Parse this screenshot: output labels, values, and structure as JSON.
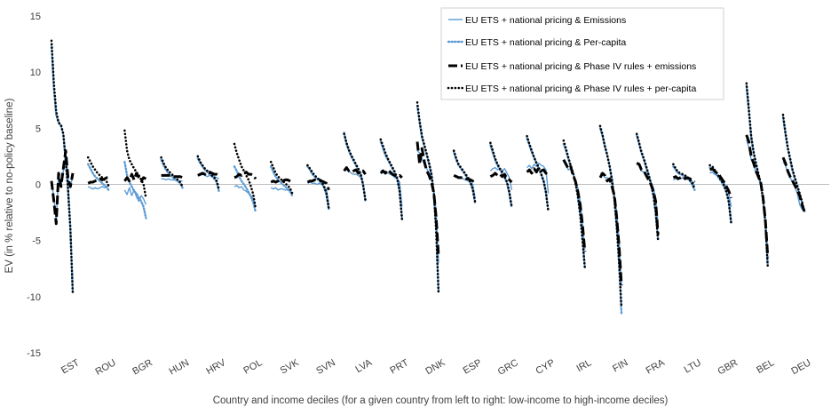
{
  "chart_data": {
    "type": "line",
    "title": "",
    "xlabel": "Country and income deciles (for a given country from left to right: low-income to high-income deciles)",
    "ylabel": "EV (in % relative to no-policy baseline)",
    "ylim": [
      -15,
      15
    ],
    "yticks": [
      15,
      10,
      5,
      0,
      -5,
      -10,
      -15
    ],
    "grid": false,
    "legend_position": "top-right",
    "colors": {
      "emissions": "#5b9bd5",
      "percapita": "#5b9bd5",
      "phase_emissions": "#000000",
      "phase_percapita": "#000000"
    },
    "categories": [
      "EST",
      "ROU",
      "BGR",
      "HUN",
      "HRV",
      "POL",
      "SVK",
      "SVN",
      "LVA",
      "PRT",
      "DNK",
      "ESP",
      "GRC",
      "CYP",
      "IRL",
      "FIN",
      "FRA",
      "LTU",
      "GBR",
      "BEL",
      "DEU"
    ],
    "series": [
      {
        "key": "emissions",
        "name": "EU ETS + national pricing & Emissions",
        "values": [
          [
            0.3,
            -1.2,
            -3.2,
            1.0,
            -0.2,
            1.2,
            2.8,
            0.5,
            -0.3,
            0.9
          ],
          [
            -0.2,
            -0.3,
            -0.4,
            -0.3,
            -0.4,
            -0.3,
            -0.2,
            -0.3,
            -0.2,
            -0.1
          ],
          [
            -0.5,
            -0.9,
            -0.3,
            -1.0,
            -0.5,
            -1.1,
            -1.5,
            -1.0,
            -1.3,
            -1.8
          ],
          [
            0.5,
            0.5,
            0.4,
            0.5,
            0.4,
            0.4,
            0.4,
            0.3,
            0.3,
            0.3
          ],
          [
            0.8,
            0.8,
            0.9,
            0.8,
            0.7,
            0.8,
            0.8,
            0.7,
            0.6,
            0.5
          ],
          [
            -0.2,
            -0.1,
            -0.3,
            -0.2,
            -0.5,
            -0.6,
            -0.8,
            -1.0,
            -1.3,
            -2.0
          ],
          [
            -0.3,
            -0.4,
            -0.3,
            -0.5,
            -0.4,
            -0.4,
            -0.5,
            -0.5,
            -0.6,
            -0.8
          ],
          [
            0.1,
            0.2,
            0.1,
            0.1,
            0.0,
            0.1,
            0.0,
            -0.2,
            -0.5,
            -1.8
          ],
          [
            1.2,
            1.4,
            1.2,
            1.0,
            0.9,
            0.9,
            0.8,
            0.6,
            0.1,
            -1.2
          ],
          [
            1.2,
            1.3,
            1.0,
            1.0,
            0.9,
            0.8,
            0.6,
            0.5,
            0.2,
            -2.0
          ],
          [
            3.0,
            2.8,
            2.3,
            1.8,
            1.4,
            1.0,
            0.5,
            -0.5,
            -2.5,
            -7.0
          ],
          [
            0.8,
            0.8,
            0.7,
            0.6,
            0.5,
            0.4,
            0.3,
            0.2,
            0.0,
            -1.2
          ],
          [
            1.2,
            1.4,
            1.5,
            1.3,
            1.4,
            1.2,
            1.4,
            1.0,
            0.6,
            -0.5
          ],
          [
            1.5,
            1.7,
            1.4,
            1.8,
            1.6,
            1.9,
            1.7,
            1.6,
            1.3,
            -0.8
          ],
          [
            2.0,
            1.8,
            1.3,
            1.4,
            1.0,
            0.4,
            -0.3,
            -1.5,
            -3.5,
            -5.8
          ],
          [
            1.0,
            0.9,
            0.6,
            0.6,
            0.4,
            0.0,
            -0.8,
            -2.5,
            -5.0,
            -9.0
          ],
          [
            1.8,
            1.7,
            1.2,
            1.1,
            0.8,
            0.5,
            0.2,
            -0.3,
            -1.2,
            -3.5
          ],
          [
            0.4,
            0.5,
            0.6,
            0.5,
            0.6,
            0.5,
            0.5,
            0.4,
            0.3,
            -0.2
          ],
          [
            1.0,
            1.1,
            0.9,
            0.8,
            0.6,
            0.4,
            0.1,
            -0.3,
            -0.8,
            -2.0
          ],
          [
            4.0,
            3.3,
            2.2,
            1.8,
            1.0,
            0.6,
            0.0,
            -1.2,
            -3.0,
            -6.0
          ],
          [
            2.0,
            1.7,
            1.0,
            0.6,
            0.2,
            -0.2,
            -0.8,
            -1.8,
            -2.2,
            -2.4
          ]
        ]
      },
      {
        "key": "percapita",
        "name": "EU ETS + national pricing & Per-capita",
        "values": [
          [
            12.5,
            8.5,
            6.2,
            5.5,
            5.2,
            4.5,
            2.0,
            -0.5,
            -4.0,
            -9.6
          ],
          [
            1.8,
            1.4,
            1.0,
            0.7,
            0.5,
            0.3,
            0.1,
            -0.1,
            -0.3,
            -0.6
          ],
          [
            2.0,
            0.8,
            0.2,
            -0.2,
            -0.6,
            -0.8,
            -1.2,
            -1.5,
            -2.0,
            -3.0
          ],
          [
            2.2,
            1.7,
            1.3,
            1.0,
            0.8,
            0.6,
            0.4,
            0.3,
            0.1,
            -0.3
          ],
          [
            2.3,
            1.9,
            1.6,
            1.3,
            1.1,
            0.9,
            0.7,
            0.5,
            0.2,
            -0.7
          ],
          [
            1.6,
            1.2,
            0.7,
            0.3,
            0.0,
            -0.3,
            -0.7,
            -1.1,
            -1.6,
            -2.5
          ],
          [
            1.6,
            1.1,
            0.7,
            0.4,
            0.2,
            0.0,
            -0.2,
            -0.4,
            -0.6,
            -1.0
          ],
          [
            1.6,
            1.3,
            0.9,
            0.7,
            0.5,
            0.3,
            0.1,
            -0.3,
            -0.9,
            -2.2
          ],
          [
            4.6,
            3.6,
            3.0,
            2.5,
            2.1,
            1.7,
            1.3,
            0.9,
            0.0,
            -1.5
          ],
          [
            3.8,
            3.2,
            2.6,
            2.2,
            1.8,
            1.4,
            1.0,
            0.5,
            -0.6,
            -3.0
          ],
          [
            7.0,
            5.5,
            4.2,
            3.4,
            2.6,
            1.8,
            0.8,
            -0.8,
            -4.0,
            -9.6
          ],
          [
            2.9,
            2.2,
            1.7,
            1.4,
            1.1,
            0.8,
            0.5,
            0.1,
            -0.4,
            -1.7
          ],
          [
            3.5,
            2.8,
            2.2,
            1.7,
            1.3,
            1.0,
            0.6,
            0.1,
            -0.8,
            -2.1
          ],
          [
            4.1,
            3.5,
            2.9,
            2.4,
            1.9,
            1.5,
            0.9,
            0.3,
            -0.7,
            -2.4
          ],
          [
            3.6,
            3.0,
            2.3,
            1.6,
            1.0,
            0.2,
            -1.0,
            -2.6,
            -4.8,
            -7.4
          ],
          [
            5.0,
            4.3,
            3.4,
            2.6,
            1.6,
            0.4,
            -1.3,
            -3.8,
            -7.0,
            -11.5
          ],
          [
            4.4,
            3.6,
            2.8,
            2.2,
            1.5,
            0.8,
            0.0,
            -1.0,
            -2.5,
            -4.9
          ],
          [
            1.6,
            1.3,
            1.0,
            0.9,
            0.8,
            0.7,
            0.5,
            0.3,
            0.0,
            -0.5
          ],
          [
            1.5,
            1.4,
            1.1,
            0.8,
            0.5,
            0.2,
            -0.2,
            -0.7,
            -1.5,
            -3.4
          ],
          [
            8.8,
            6.5,
            4.2,
            2.8,
            1.8,
            0.9,
            0.0,
            -1.4,
            -3.5,
            -7.3
          ],
          [
            6.0,
            4.5,
            3.2,
            2.2,
            1.2,
            0.5,
            -0.2,
            -0.9,
            -1.6,
            -2.4
          ]
        ]
      },
      {
        "key": "phase_emissions",
        "name": "EU ETS + national pricing & Phase IV rules + emissions",
        "values": [
          [
            0.3,
            -1.5,
            -3.5,
            1.0,
            -0.2,
            1.4,
            3.0,
            0.5,
            -0.2,
            1.0
          ],
          [
            0.1,
            0.2,
            0.2,
            0.3,
            0.4,
            0.5,
            0.4,
            0.5,
            0.6,
            0.6
          ],
          [
            0.3,
            0.6,
            0.3,
            0.9,
            0.4,
            1.0,
            0.6,
            0.3,
            0.6,
            0.5
          ],
          [
            0.8,
            0.8,
            0.8,
            0.8,
            0.8,
            0.7,
            0.7,
            0.7,
            0.7,
            0.6
          ],
          [
            0.8,
            0.9,
            1.0,
            0.9,
            1.0,
            1.1,
            1.0,
            0.9,
            0.9,
            0.8
          ],
          [
            0.6,
            0.7,
            0.9,
            0.8,
            1.0,
            1.1,
            0.9,
            0.9,
            0.8,
            0.5
          ],
          [
            0.2,
            0.3,
            0.2,
            0.3,
            0.4,
            0.3,
            0.4,
            0.4,
            0.3,
            0.2
          ],
          [
            0.2,
            0.3,
            0.3,
            0.4,
            0.3,
            0.4,
            0.3,
            0.2,
            0.1,
            -0.5
          ],
          [
            1.2,
            1.5,
            1.2,
            1.1,
            1.2,
            1.3,
            1.0,
            1.1,
            1.2,
            0.9
          ],
          [
            1.0,
            1.2,
            1.0,
            1.3,
            1.1,
            0.9,
            0.8,
            0.7,
            0.8,
            0.6
          ],
          [
            3.8,
            1.8,
            3.2,
            2.0,
            1.2,
            0.8,
            0.2,
            -0.8,
            -3.0,
            -6.5
          ],
          [
            0.8,
            0.7,
            0.6,
            0.6,
            0.6,
            0.5,
            0.5,
            0.4,
            0.3,
            0.1
          ],
          [
            0.7,
            0.8,
            1.0,
            0.8,
            0.9,
            0.7,
            0.9,
            0.5,
            0.4,
            0.2
          ],
          [
            1.1,
            1.3,
            1.0,
            1.4,
            1.1,
            1.5,
            1.2,
            1.3,
            1.0,
            0.8
          ],
          [
            2.2,
            1.8,
            1.4,
            1.6,
            0.8,
            0.3,
            -0.6,
            -1.8,
            -3.6,
            -6.0
          ],
          [
            0.6,
            1.0,
            0.8,
            0.3,
            0.5,
            -0.2,
            -1.0,
            -3.0,
            -5.5,
            -9.0
          ],
          [
            1.9,
            1.8,
            1.3,
            1.2,
            0.8,
            0.4,
            0.0,
            -0.6,
            -1.5,
            -4.5
          ],
          [
            0.6,
            0.7,
            0.5,
            0.6,
            0.7,
            0.5,
            0.6,
            0.5,
            0.4,
            0.2
          ],
          [
            1.3,
            1.4,
            1.2,
            1.0,
            0.8,
            0.5,
            0.2,
            -0.2,
            -0.6,
            -1.2
          ],
          [
            4.4,
            3.8,
            2.5,
            1.9,
            1.2,
            0.7,
            0.2,
            -1.2,
            -3.2,
            -6.5
          ],
          [
            2.4,
            1.9,
            1.2,
            0.7,
            0.3,
            -0.1,
            -0.5,
            -1.0,
            -1.8,
            -2.4
          ]
        ]
      },
      {
        "key": "phase_percapita",
        "name": "EU ETS + national pricing & Phase IV rules + per-capita",
        "values": [
          [
            12.8,
            9.0,
            6.5,
            5.5,
            5.3,
            4.5,
            2.2,
            -0.5,
            -4.0,
            -9.8
          ],
          [
            2.4,
            2.0,
            1.6,
            1.3,
            1.0,
            0.8,
            0.6,
            0.4,
            0.2,
            -0.3
          ],
          [
            4.8,
            3.0,
            2.2,
            1.8,
            1.4,
            1.1,
            0.8,
            0.4,
            0.0,
            -1.2
          ],
          [
            2.4,
            1.9,
            1.5,
            1.2,
            1.0,
            0.8,
            0.6,
            0.4,
            0.2,
            -0.2
          ],
          [
            2.5,
            2.0,
            1.7,
            1.4,
            1.2,
            1.0,
            0.8,
            0.6,
            0.3,
            -0.5
          ],
          [
            3.6,
            2.8,
            2.2,
            1.6,
            1.2,
            0.8,
            0.4,
            -0.2,
            -0.9,
            -2.2
          ],
          [
            2.0,
            1.5,
            1.0,
            0.7,
            0.5,
            0.3,
            0.1,
            -0.1,
            -0.3,
            -0.8
          ],
          [
            1.7,
            1.4,
            1.1,
            0.8,
            0.6,
            0.4,
            0.2,
            -0.2,
            -0.8,
            -2.2
          ],
          [
            4.5,
            3.7,
            3.1,
            2.6,
            2.2,
            1.8,
            1.4,
            0.9,
            0.0,
            -1.4
          ],
          [
            4.0,
            3.4,
            2.8,
            2.3,
            1.9,
            1.5,
            1.1,
            0.5,
            -0.6,
            -3.1
          ],
          [
            7.3,
            5.6,
            4.3,
            3.5,
            2.7,
            1.9,
            0.9,
            -0.8,
            -4.2,
            -9.8
          ],
          [
            3.0,
            2.3,
            1.8,
            1.5,
            1.2,
            0.9,
            0.6,
            0.2,
            -0.4,
            -1.6
          ],
          [
            3.7,
            3.0,
            2.3,
            1.8,
            1.4,
            1.1,
            0.7,
            0.2,
            -0.7,
            -2.0
          ],
          [
            4.3,
            3.6,
            3.0,
            2.4,
            1.9,
            1.5,
            0.9,
            0.3,
            -0.7,
            -2.4
          ],
          [
            3.9,
            3.2,
            2.4,
            1.7,
            1.0,
            0.2,
            -1.0,
            -2.7,
            -5.0,
            -7.5
          ],
          [
            5.2,
            4.4,
            3.4,
            2.6,
            1.6,
            0.4,
            -1.3,
            -3.8,
            -7.0,
            -11.0
          ],
          [
            4.5,
            3.7,
            2.9,
            2.3,
            1.6,
            0.9,
            0.1,
            -0.9,
            -2.4,
            -5.0
          ],
          [
            1.8,
            1.4,
            1.1,
            1.0,
            0.9,
            0.8,
            0.6,
            0.4,
            0.1,
            -0.4
          ],
          [
            1.7,
            1.6,
            1.3,
            1.0,
            0.6,
            0.3,
            -0.1,
            -0.7,
            -1.6,
            -3.5
          ],
          [
            9.0,
            6.7,
            4.3,
            2.9,
            1.9,
            1.0,
            0.1,
            -1.3,
            -3.5,
            -7.4
          ],
          [
            6.2,
            4.6,
            3.3,
            2.3,
            1.3,
            0.6,
            -0.1,
            -0.8,
            -1.5,
            -2.5
          ]
        ]
      }
    ]
  }
}
